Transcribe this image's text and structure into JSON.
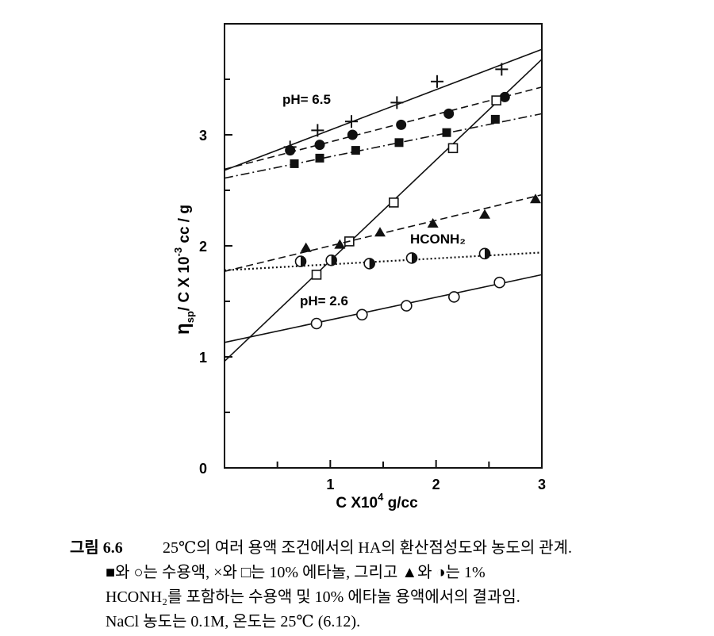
{
  "chart_data": {
    "type": "scatter",
    "x_label": {
      "main": "C X10",
      "sup": "4",
      "end": " g/cc"
    },
    "y_label": {
      "main": "η",
      "sub": "sp",
      "mid": "/ C X 10",
      "sup": "-3",
      "end": " cc / g"
    },
    "xlim": [
      0,
      3
    ],
    "ylim": [
      0,
      4
    ],
    "xticks": [
      1,
      2,
      3
    ],
    "xminor_ticks": [
      0.5,
      1.5,
      2.5
    ],
    "yticks": [
      0,
      1,
      2,
      3
    ],
    "yminor_ticks": [
      0.5,
      1.5,
      2.5,
      3.5
    ],
    "grid": false,
    "annotations": [
      "pH= 6.5",
      "HCONH₂",
      "pH= 2.6"
    ],
    "series": [
      {
        "marker": "plus",
        "color": "#111111",
        "dash": "solid",
        "x": [
          0.62,
          0.88,
          1.2,
          1.63,
          2.01,
          2.62
        ],
        "values": [
          2.89,
          3.04,
          3.12,
          3.29,
          3.48,
          3.59
        ],
        "fit": {
          "x": [
            0,
            3
          ],
          "y": [
            2.68,
            3.77
          ]
        }
      },
      {
        "marker": "filled-circle",
        "color": "#111111",
        "dash": "dashed",
        "x": [
          0.62,
          0.9,
          1.21,
          1.67,
          2.12,
          2.65
        ],
        "values": [
          2.86,
          2.91,
          3.0,
          3.09,
          3.19,
          3.34
        ],
        "fit": {
          "x": [
            0,
            3
          ],
          "y": [
            2.69,
            3.43
          ]
        }
      },
      {
        "marker": "filled-square",
        "color": "#111111",
        "dash": "dashdot",
        "x": [
          0.66,
          0.9,
          1.24,
          1.65,
          2.1,
          2.56
        ],
        "values": [
          2.74,
          2.79,
          2.86,
          2.93,
          3.02,
          3.14
        ],
        "fit": {
          "x": [
            0,
            3
          ],
          "y": [
            2.61,
            3.19
          ]
        }
      },
      {
        "marker": "open-square",
        "color": "#111111",
        "dash": "solid",
        "x": [
          0.87,
          1.18,
          1.6,
          2.16,
          2.57
        ],
        "values": [
          1.74,
          2.04,
          2.39,
          2.88,
          3.31
        ],
        "fit": {
          "x": [
            0,
            3
          ],
          "y": [
            0.96,
            3.68
          ]
        }
      },
      {
        "marker": "filled-triangle",
        "color": "#111111",
        "dash": "dashed",
        "x": [
          0.77,
          1.09,
          1.47,
          1.97,
          2.46,
          2.94
        ],
        "values": [
          1.98,
          2.01,
          2.12,
          2.2,
          2.28,
          2.42
        ],
        "fit": {
          "x": [
            0,
            3
          ],
          "y": [
            1.77,
            2.46
          ]
        }
      },
      {
        "marker": "half-circle",
        "color": "#111111",
        "dash": "dotted",
        "x": [
          0.72,
          1.01,
          1.37,
          1.77,
          2.46
        ],
        "values": [
          1.86,
          1.87,
          1.84,
          1.89,
          1.93
        ],
        "fit": {
          "x": [
            0,
            3
          ],
          "y": [
            1.78,
            1.94
          ]
        }
      },
      {
        "marker": "open-circle",
        "color": "#111111",
        "dash": "solid",
        "x": [
          0.87,
          1.3,
          1.72,
          2.17,
          2.6
        ],
        "values": [
          1.3,
          1.38,
          1.46,
          1.54,
          1.67
        ],
        "fit": {
          "x": [
            0,
            3
          ],
          "y": [
            1.13,
            1.74
          ]
        }
      }
    ]
  },
  "caption": {
    "label": "그림 6.6",
    "lines": [
      "25℃의 여러 용액 조건에서의 HA의 환산점성도와 농도의 관계.",
      "■와 ○는 수용액, ×와 □는 10% 에타놀, 그리고 ▲와 ◑는 1%",
      "HCONH₂를 포함하는 수용액 및 10% 에타놀 용액에서의 결과임.",
      "NaCl 농도는 0.1M, 온도는 25℃ (6.12)."
    ]
  }
}
